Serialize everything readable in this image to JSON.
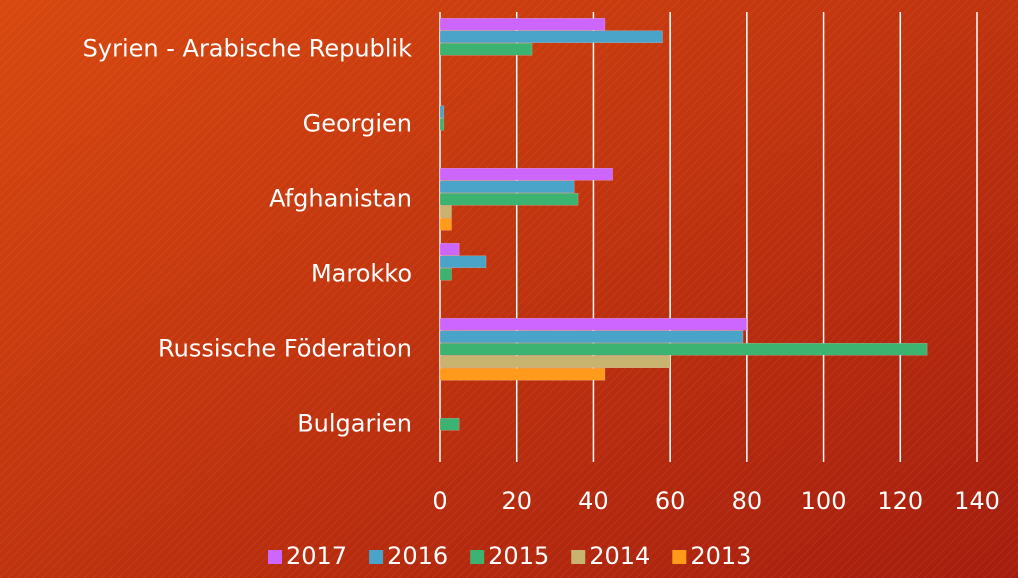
{
  "chart_data": {
    "type": "hbar",
    "categories": [
      "Syrien - Arabische Republik",
      "Georgien",
      "Afghanistan",
      "Marokko",
      "Russische Föderation",
      "Bulgarien"
    ],
    "series": [
      {
        "name": "2017",
        "color": "#cc66ff",
        "values": [
          43,
          0,
          45,
          5,
          80,
          0
        ]
      },
      {
        "name": "2016",
        "color": "#4aa3c8",
        "values": [
          58,
          1,
          35,
          12,
          79,
          0
        ]
      },
      {
        "name": "2015",
        "color": "#3cb371",
        "values": [
          24,
          1,
          36,
          3,
          127,
          5
        ]
      },
      {
        "name": "2014",
        "color": "#c8b46e",
        "values": [
          0,
          0,
          3,
          0,
          60,
          0
        ]
      },
      {
        "name": "2013",
        "color": "#ff9a1a",
        "values": [
          0,
          0,
          3,
          0,
          43,
          0
        ]
      }
    ],
    "xlim": [
      0,
      140
    ],
    "xticks": [
      0,
      20,
      40,
      60,
      80,
      100,
      120,
      140
    ],
    "grid": true,
    "legend": "bottom"
  }
}
